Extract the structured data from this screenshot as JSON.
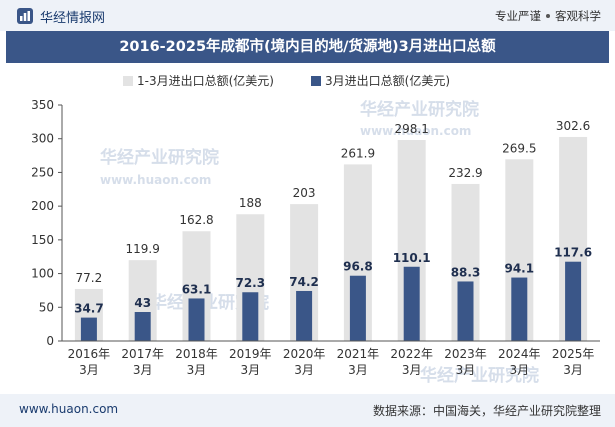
{
  "header": {
    "brand": "华经情报网",
    "tag_left": "专业严谨",
    "tag_right": "客观科学"
  },
  "title": "2016-2025年成都市(境内目的地/货源地)3月进出口总额",
  "watermark": {
    "cn": "华经产业研究院",
    "en": "www.huaon.com"
  },
  "footer": {
    "website": "www.huaon.com",
    "source": "数据来源：中国海关，华经产业研究院整理"
  },
  "colors": {
    "series1": "#e3e3e3",
    "series2": "#3a5688",
    "title_bg": "#3a5688",
    "bar_bg": "#eef2f8"
  },
  "chart_data": {
    "type": "bar",
    "categories": [
      "2016年3月",
      "2017年3月",
      "2018年3月",
      "2019年3月",
      "2020年3月",
      "2021年3月",
      "2022年3月",
      "2023年3月",
      "2024年3月",
      "2025年3月"
    ],
    "series": [
      {
        "name": "1-3月进出口总额(亿美元)",
        "values": [
          77.2,
          119.9,
          162.8,
          188,
          203,
          261.9,
          298.1,
          232.9,
          269.5,
          302.6
        ]
      },
      {
        "name": "3月进出口总额(亿美元)",
        "values": [
          34.7,
          43,
          63.1,
          72.3,
          74.2,
          96.8,
          110.1,
          88.3,
          94.1,
          117.6
        ]
      }
    ],
    "ylim": [
      0,
      350
    ],
    "yticks": [
      0,
      50,
      100,
      150,
      200,
      250,
      300,
      350
    ],
    "legend_position": "top-left",
    "grid": false
  }
}
